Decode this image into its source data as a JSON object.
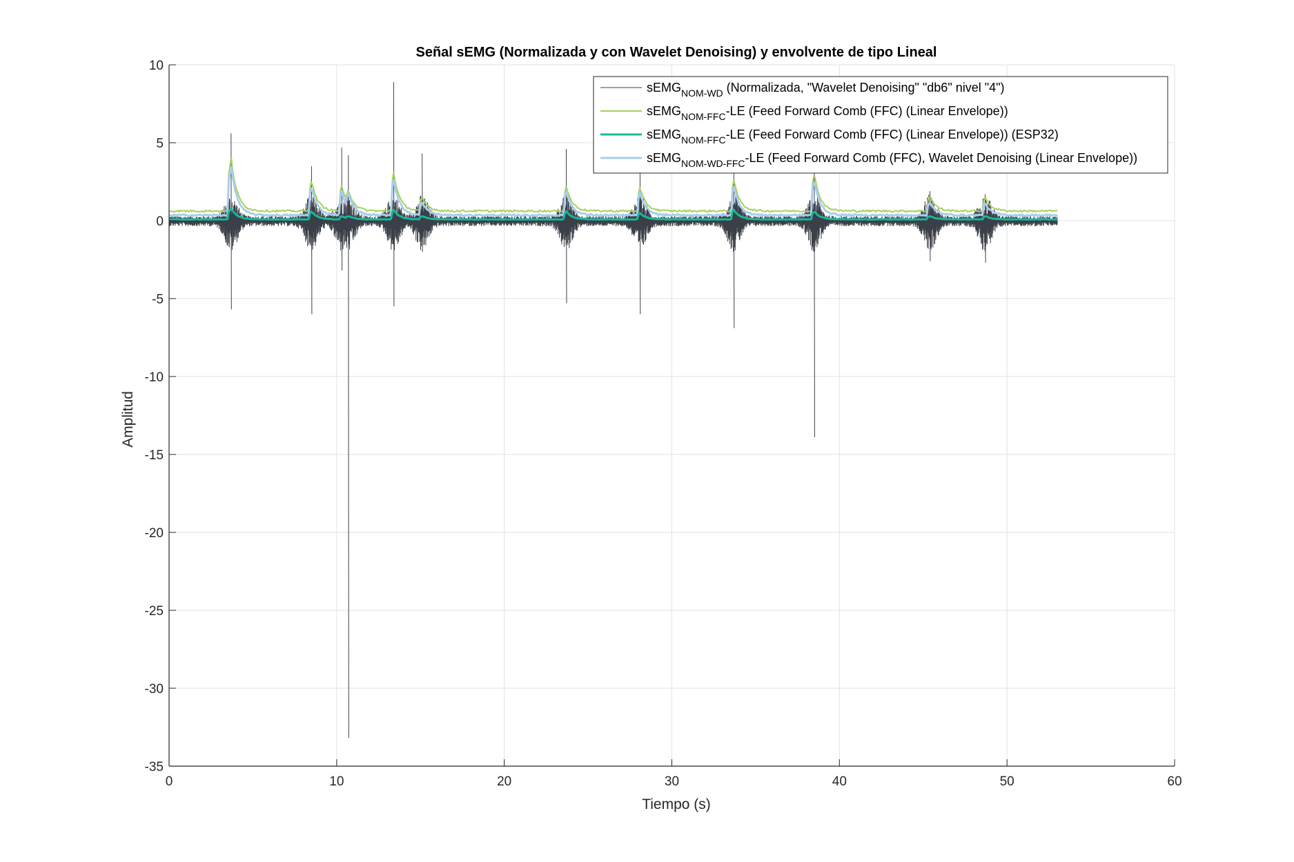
{
  "chart_data": {
    "type": "line",
    "title": "Señal sEMG (Normalizada y con Wavelet Denoising) y envolvente de tipo Lineal",
    "xlabel": "Tiempo (s)",
    "ylabel": "Amplitud",
    "xlim": [
      0,
      60
    ],
    "ylim": [
      -35,
      10
    ],
    "xticks": [
      0,
      10,
      20,
      30,
      40,
      50,
      60
    ],
    "yticks": [
      -35,
      -30,
      -25,
      -20,
      -15,
      -10,
      -5,
      0,
      5,
      10
    ],
    "grid": true,
    "legend_position": "top-right",
    "signal_end_s": 53,
    "bursts": [
      {
        "t": 3.7,
        "max": 5.6,
        "min": -5.7,
        "env_ffc": 4.1,
        "env_esp32": 0.8,
        "env_wd": 3.6
      },
      {
        "t": 8.5,
        "max": 3.5,
        "min": -6.0,
        "env_ffc": 2.6,
        "env_esp32": 0.6,
        "env_wd": 2.2
      },
      {
        "t": 10.3,
        "max": 4.7,
        "min": -3.2,
        "env_ffc": 2.2,
        "env_esp32": 0.3,
        "env_wd": 1.9
      },
      {
        "t": 10.7,
        "max": 4.2,
        "min": -33.2,
        "env_ffc": 2.0,
        "env_esp32": 0.3,
        "env_wd": 1.8
      },
      {
        "t": 13.4,
        "max": 8.9,
        "min": -5.5,
        "env_ffc": 3.1,
        "env_esp32": 0.7,
        "env_wd": 2.7
      },
      {
        "t": 15.1,
        "max": 4.3,
        "min": -2.0,
        "env_ffc": 1.5,
        "env_esp32": 0.3,
        "env_wd": 1.2
      },
      {
        "t": 23.7,
        "max": 4.6,
        "min": -5.3,
        "env_ffc": 2.2,
        "env_esp32": 0.6,
        "env_wd": 1.9
      },
      {
        "t": 28.1,
        "max": 3.1,
        "min": -6.0,
        "env_ffc": 2.1,
        "env_esp32": 0.5,
        "env_wd": 1.8
      },
      {
        "t": 33.7,
        "max": 3.5,
        "min": -6.9,
        "env_ffc": 2.6,
        "env_esp32": 0.7,
        "env_wd": 2.2
      },
      {
        "t": 38.5,
        "max": 3.3,
        "min": -13.9,
        "env_ffc": 3.0,
        "env_esp32": 0.6,
        "env_wd": 2.6
      },
      {
        "t": 45.4,
        "max": 1.9,
        "min": -2.6,
        "env_ffc": 1.6,
        "env_esp32": 0.3,
        "env_wd": 1.2
      },
      {
        "t": 48.7,
        "max": 1.7,
        "min": -2.7,
        "env_ffc": 1.5,
        "env_esp32": 0.3,
        "env_wd": 1.1
      }
    ],
    "series": [
      {
        "name": "sEMG",
        "sub": "NOM-WD",
        "suffix": " (Normalizada, \"Wavelet Denoising\" \"db6\" nivel \"4\")",
        "color": "#3b3f47",
        "width": 1
      },
      {
        "name": "sEMG",
        "sub": "NOM-FFC",
        "suffix": "-LE (Feed Forward Comb (FFC) (Linear Envelope))",
        "color": "#a5d15a",
        "width": 2
      },
      {
        "name": "sEMG",
        "sub": "NOM-FFC",
        "suffix": "-LE (Feed Forward Comb (FFC) (Linear Envelope)) (ESP32)",
        "color": "#17b89a",
        "width": 3
      },
      {
        "name": "sEMG",
        "sub": "NOM-WD-FFC",
        "suffix": "-LE (Feed Forward Comb (FFC), Wavelet Denoising (Linear Envelope))",
        "color": "#a9ccee",
        "width": 3
      }
    ]
  }
}
